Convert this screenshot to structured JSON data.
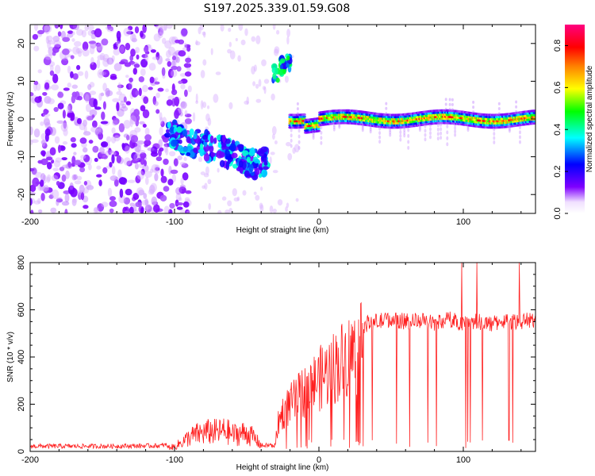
{
  "figure_title": "S197.2025.339.01.59.G08",
  "chart_data": [
    {
      "type": "heatmap",
      "name": "spectrogram",
      "title": "S197.2025.339.01.59.G08",
      "xlabel": "Height of straight line (km)",
      "ylabel": "Frequency (Hz)",
      "xlim": [
        -200,
        150
      ],
      "ylim": [
        -25,
        25
      ],
      "x_ticks": [
        -200,
        -100,
        0,
        100
      ],
      "x_tick_labels": [
        "-200",
        "-100",
        "0",
        "100"
      ],
      "y_ticks": [
        -20,
        -10,
        0,
        10,
        20
      ],
      "y_tick_labels": [
        "-20",
        "-10",
        "0",
        "10",
        "20"
      ],
      "colorbar": {
        "label": "Normalized spectral amplitude",
        "range": [
          0.0,
          0.9
        ],
        "ticks": [
          0.0,
          0.2,
          0.4,
          0.6,
          0.8
        ],
        "tick_labels": [
          "0.0",
          "0.2",
          "0.4",
          "0.6",
          "0.8"
        ],
        "colormap": [
          "#ffffff",
          "#7f00ff",
          "#0000ff",
          "#00ffff",
          "#00ff00",
          "#ffff00",
          "#ff8000",
          "#ff0000",
          "#ff0080"
        ]
      },
      "features": [
        {
          "label": "noise field",
          "x_range": [
            -200,
            -100
          ],
          "freq_range": [
            -25,
            25
          ],
          "amplitude": 0.1
        },
        {
          "label": "descending track",
          "points": [
            [
              -105,
              -4
            ],
            [
              -90,
              -6
            ],
            [
              -70,
              -8
            ],
            [
              -55,
              -10
            ],
            [
              -45,
              -12
            ],
            [
              -35,
              -11
            ]
          ],
          "amplitude": 0.3
        },
        {
          "label": "high-frequency burst",
          "points": [
            [
              -30,
              12
            ],
            [
              -25,
              14
            ],
            [
              -22,
              15
            ]
          ],
          "amplitude": 0.4
        },
        {
          "label": "steady carrier",
          "x_range": [
            -20,
            150
          ],
          "frequency": 0,
          "amplitude": 0.7
        }
      ]
    },
    {
      "type": "line",
      "name": "snr",
      "xlabel": "Height of straight line (km)",
      "ylabel": "SNR (10 * v/v)",
      "xlim": [
        -200,
        150
      ],
      "ylim": [
        0,
        800
      ],
      "x_ticks": [
        -200,
        -100,
        0,
        100
      ],
      "x_tick_labels": [
        "-200",
        "-100",
        "0",
        "100"
      ],
      "y_ticks": [
        0,
        200,
        400,
        600,
        800
      ],
      "y_tick_labels": [
        "0",
        "200",
        "400",
        "600",
        "800"
      ],
      "color": "#ff2020",
      "series": [
        {
          "name": "SNR envelope",
          "x": [
            -200,
            -150,
            -110,
            -100,
            -95,
            -90,
            -85,
            -80,
            -75,
            -70,
            -65,
            -60,
            -55,
            -50,
            -45,
            -40,
            -35,
            -30,
            -28,
            -25,
            -20,
            -15,
            -10,
            -5,
            0,
            5,
            10,
            15,
            20,
            25,
            30,
            35,
            40,
            45,
            50,
            60,
            70,
            80,
            90,
            100,
            110,
            120,
            130,
            140,
            150
          ],
          "y": [
            20,
            20,
            22,
            30,
            60,
            90,
            110,
            120,
            130,
            125,
            135,
            110,
            115,
            120,
            90,
            40,
            25,
            60,
            150,
            200,
            240,
            270,
            310,
            340,
            370,
            400,
            430,
            460,
            490,
            510,
            530,
            545,
            550,
            555,
            560,
            550,
            555,
            545,
            560,
            545,
            550,
            540,
            555,
            550,
            560
          ]
        }
      ]
    }
  ]
}
